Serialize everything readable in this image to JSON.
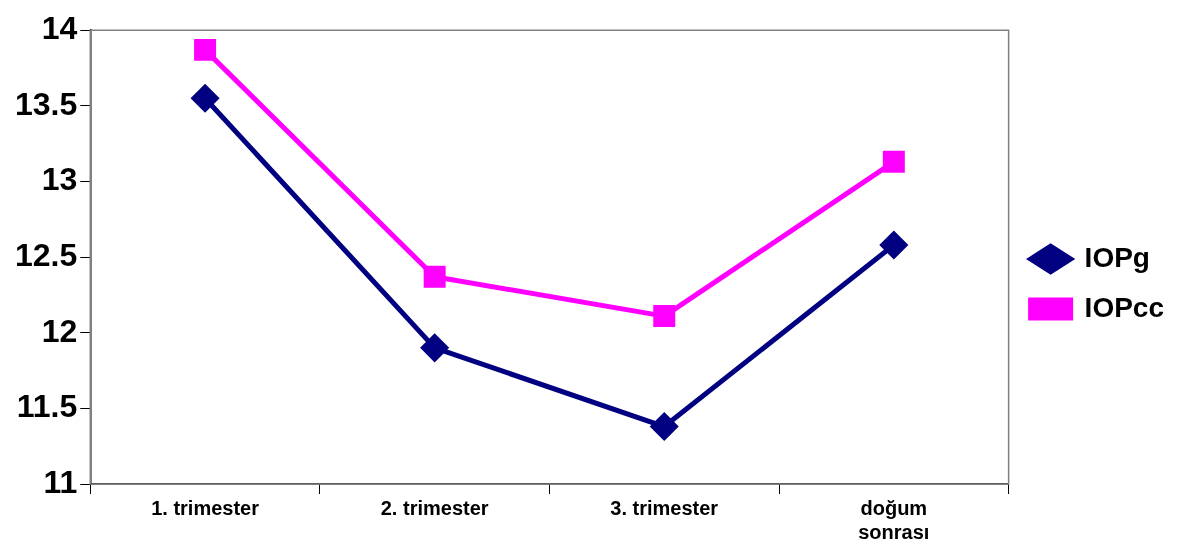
{
  "chart_data": {
    "type": "line",
    "categories": [
      "1. trimester",
      "2. trimester",
      "3. trimester",
      "doğum sonrası"
    ],
    "series": [
      {
        "name": "IOPg",
        "color": "#000080",
        "marker": "diamond",
        "values": [
          13.55,
          11.9,
          11.38,
          12.58
        ]
      },
      {
        "name": "IOPcc",
        "color": "#ff00ff",
        "marker": "square",
        "values": [
          13.87,
          12.37,
          12.11,
          13.13
        ]
      }
    ],
    "ylim": [
      11,
      14
    ],
    "yticks": [
      11,
      11.5,
      12,
      12.5,
      13,
      13.5,
      14
    ],
    "grid": false,
    "legend": "right",
    "line_style": "solid"
  }
}
